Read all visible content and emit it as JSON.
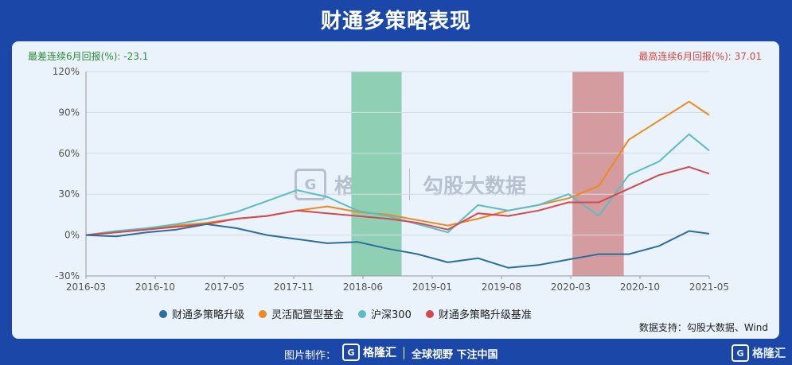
{
  "title": "财通多策略表现",
  "stats": {
    "left_label": "最差连续6月回报(%):",
    "left_value": "-23.1",
    "right_label": "最高连续6月回报(%):",
    "right_value": "37.01"
  },
  "watermark": {
    "logo_text": "格隆汇",
    "logo_url": "www.gelonghui.com",
    "brand": "勾股大数据",
    "brand_url": "www.gogudata.com"
  },
  "source": "数据支持：勾股大数据、Wind",
  "footer": {
    "made_by": "图片制作：",
    "logo": "格隆汇",
    "slogan": "全球视野 下注中国",
    "brand": "格隆汇"
  },
  "colors": {
    "s1": "#2b6e9e",
    "s2": "#ec8a1e",
    "s3": "#5bbcc4",
    "s4": "#d5484e",
    "green_band": "#8fd0b4",
    "red_band": "#d49c9f"
  },
  "chart_data": {
    "type": "line",
    "xlabels": [
      "2016-03",
      "2016-10",
      "2017-05",
      "2017-11",
      "2018-06",
      "2019-01",
      "2019-08",
      "2020-03",
      "2020-10",
      "2021-05"
    ],
    "ylabels": [
      "120%",
      "90%",
      "60%",
      "30%",
      "0%",
      "-30%"
    ],
    "ylim": [
      -30,
      120
    ],
    "yticks": [
      120,
      90,
      60,
      30,
      0,
      -30
    ],
    "x": [
      0,
      3,
      6,
      9,
      12,
      15,
      18,
      21,
      24,
      27,
      30,
      33,
      36,
      39,
      42,
      45,
      48,
      51,
      54,
      57,
      60,
      62
    ],
    "xlim": [
      0,
      62
    ],
    "shaded_regions": [
      {
        "start": 26.4,
        "end": 31.4,
        "color": "green"
      },
      {
        "start": 48.4,
        "end": 53.5,
        "color": "red"
      }
    ],
    "series": [
      {
        "name": "财通多策略升级",
        "values": [
          0,
          -1,
          2,
          4,
          8,
          5,
          0,
          -3,
          -6,
          -5,
          -10,
          -14,
          -20,
          -17,
          -24,
          -22,
          -18,
          -14,
          -14,
          -8,
          3,
          1
        ]
      },
      {
        "name": "灵活配置型基金",
        "values": [
          0,
          2,
          4,
          7,
          9,
          12,
          14,
          18,
          21,
          17,
          15,
          11,
          7,
          12,
          18,
          22,
          27,
          36,
          70,
          84,
          98,
          88
        ]
      },
      {
        "name": "沪深300",
        "values": [
          0,
          3,
          5,
          8,
          12,
          17,
          25,
          33,
          28,
          18,
          14,
          8,
          2,
          22,
          18,
          22,
          30,
          14,
          44,
          54,
          74,
          62
        ]
      },
      {
        "name": "财通多策略升级基准",
        "values": [
          0,
          2,
          4,
          6,
          8,
          12,
          14,
          18,
          16,
          14,
          12,
          9,
          4,
          16,
          14,
          18,
          24,
          24,
          34,
          44,
          50,
          45
        ]
      }
    ]
  }
}
